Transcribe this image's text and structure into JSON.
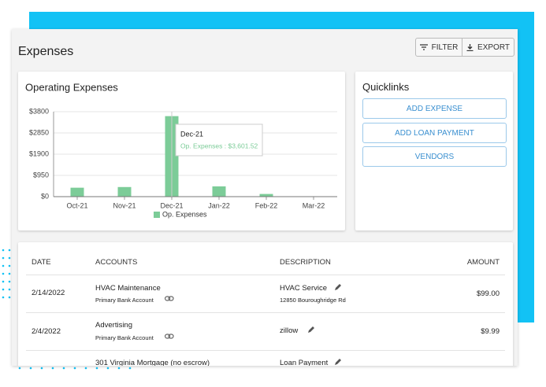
{
  "header": {
    "title": "Expenses",
    "buttons": [
      "FILTER",
      "EXPORT"
    ]
  },
  "chart_data": {
    "type": "bar",
    "title": "Operating Expenses",
    "categories": [
      "Oct-21",
      "Nov-21",
      "Dec-21",
      "Jan-22",
      "Feb-22",
      "Mar-22"
    ],
    "series": [
      {
        "name": "Op. Expenses",
        "color": "#7ccc98",
        "values": [
          400,
          430,
          3601.52,
          460,
          120,
          0
        ]
      }
    ],
    "ylim": [
      0,
      3800
    ],
    "yticks": [
      {
        "value": 0,
        "label": "$0"
      },
      {
        "value": 950,
        "label": "$950"
      },
      {
        "value": 1900,
        "label": "$1900"
      },
      {
        "value": 2850,
        "label": "$2850"
      },
      {
        "value": 3800,
        "label": "$3800"
      }
    ],
    "grid": true,
    "legend": "bottom",
    "tooltip": {
      "category": "Dec-21",
      "text": "Op. Expenses : $3,601.52"
    }
  },
  "quicklinks": {
    "title": "Quicklinks",
    "links": [
      "ADD EXPENSE",
      "ADD LOAN PAYMENT",
      "VENDORS"
    ]
  },
  "table": {
    "columns": [
      "DATE",
      "ACCOUNTS",
      "DESCRIPTION",
      "AMOUNT"
    ],
    "rows": [
      {
        "date": "2/14/2022",
        "account": "HVAC Maintenance",
        "bank": "Primary Bank Account",
        "description": "HVAC Service",
        "address": "12850 Bouroughridge Rd",
        "amount": "$99.00"
      },
      {
        "date": "2/4/2022",
        "account": "Advertising",
        "bank": "Primary Bank Account",
        "description": "zillow",
        "amount": "$9.99"
      },
      {
        "account": "301 Virginia Mortgage (no escrow)",
        "description": "Loan Payment"
      }
    ]
  }
}
